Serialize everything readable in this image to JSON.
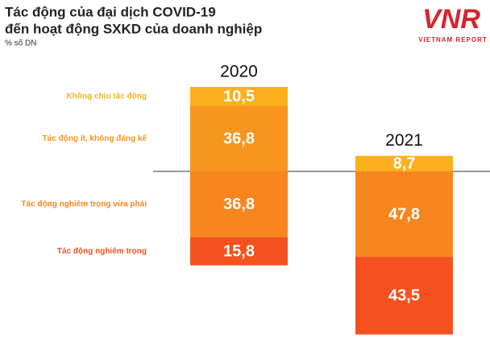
{
  "chart_data": {
    "type": "bar",
    "stacked": true,
    "title": "Tác động của đại dịch COVID-19",
    "subtitle": "đến hoạt động SXKD của doanh nghiệp",
    "unit_label": "% số DN",
    "logo": {
      "mark": "VNR",
      "text": "VIETNAM REPORT"
    },
    "categories": [
      "2020",
      "2021"
    ],
    "series": [
      {
        "name": "Không chịu tác động",
        "color": "#fbb01c",
        "values": [
          10.5,
          8.7
        ],
        "value_labels": [
          "10,5",
          "8,7"
        ]
      },
      {
        "name": "Tác động ít, không đáng kể",
        "color": "#f7951d",
        "values": [
          36.8,
          null
        ],
        "value_labels": [
          "36,8",
          null
        ]
      },
      {
        "name": "Tác động nghiêm trọng vừa phải",
        "color": "#f7861e",
        "values": [
          36.8,
          47.8
        ],
        "value_labels": [
          "36,8",
          "47,8"
        ]
      },
      {
        "name": "Tác động nghiêm trọng",
        "color": "#f4511e",
        "values": [
          15.8,
          43.5
        ],
        "value_labels": [
          "15,8",
          "43,5"
        ]
      }
    ]
  }
}
